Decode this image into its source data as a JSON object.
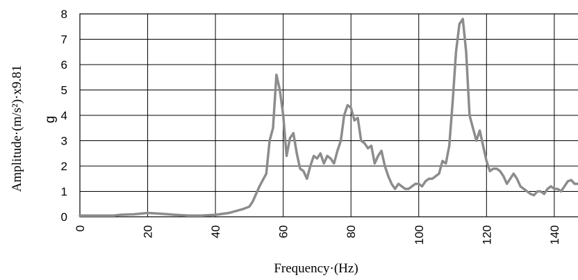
{
  "chart_data": {
    "type": "line",
    "xlabel": "Frequency·(Hz)",
    "ylabel": "Amplitude·(m/s²)·x9.81",
    "unit_label": "g",
    "xlim": [
      0,
      147
    ],
    "ylim": [
      0,
      8
    ],
    "x_ticks": [
      "0",
      "20",
      "40",
      "60",
      "80",
      "100",
      "120",
      "140"
    ],
    "y_ticks": [
      "0",
      "1",
      "2",
      "3",
      "4",
      "5",
      "6",
      "7",
      "8"
    ],
    "x_grid_step": 20,
    "y_grid_step": 1,
    "grid": true,
    "line_color": "#8c8c8c",
    "series": [
      {
        "x": [
          0,
          10,
          12,
          16,
          20,
          24,
          28,
          32,
          36,
          40,
          44,
          48,
          50,
          51,
          53,
          55,
          56,
          57,
          58,
          59,
          60,
          61,
          62,
          63,
          64,
          65,
          66,
          67,
          68,
          69,
          70,
          71,
          72,
          73,
          74,
          75,
          76,
          77,
          78,
          79,
          80,
          81,
          82,
          83,
          84,
          85,
          86,
          87,
          88,
          89,
          90,
          91,
          92,
          93,
          94,
          95,
          96,
          97,
          98,
          99,
          100,
          101,
          102,
          103,
          104,
          105,
          106,
          107,
          108,
          109,
          110,
          111,
          112,
          113,
          114,
          115,
          116,
          117,
          118,
          119,
          120,
          121,
          122,
          123,
          124,
          125,
          126,
          127,
          128,
          129,
          130,
          131,
          132,
          133,
          134,
          135,
          136,
          137,
          138,
          139,
          140,
          141,
          142,
          143,
          144,
          145,
          146,
          147
        ],
        "y": [
          0.05,
          0.05,
          0.08,
          0.1,
          0.15,
          0.12,
          0.08,
          0.05,
          0.05,
          0.08,
          0.15,
          0.3,
          0.4,
          0.6,
          1.2,
          1.7,
          3.0,
          3.5,
          5.6,
          5.0,
          4.0,
          2.4,
          3.1,
          3.3,
          2.5,
          1.9,
          1.8,
          1.5,
          2.0,
          2.4,
          2.3,
          2.5,
          2.1,
          2.4,
          2.3,
          2.1,
          2.6,
          3.0,
          4.0,
          4.4,
          4.3,
          3.8,
          3.9,
          3.0,
          2.9,
          2.7,
          2.8,
          2.1,
          2.4,
          2.6,
          2.0,
          1.6,
          1.3,
          1.1,
          1.3,
          1.2,
          1.1,
          1.1,
          1.2,
          1.3,
          1.3,
          1.2,
          1.4,
          1.5,
          1.5,
          1.6,
          1.7,
          2.2,
          2.1,
          2.8,
          4.5,
          6.5,
          7.6,
          7.8,
          6.5,
          4.0,
          3.5,
          3.0,
          3.4,
          2.8,
          2.2,
          1.8,
          1.9,
          1.9,
          1.8,
          1.6,
          1.3,
          1.5,
          1.7,
          1.5,
          1.2,
          1.1,
          1.0,
          0.9,
          0.85,
          1.0,
          1.0,
          0.9,
          1.1,
          1.2,
          1.1,
          1.1,
          1.0,
          1.2,
          1.4,
          1.45,
          1.3,
          1.3
        ]
      }
    ]
  }
}
